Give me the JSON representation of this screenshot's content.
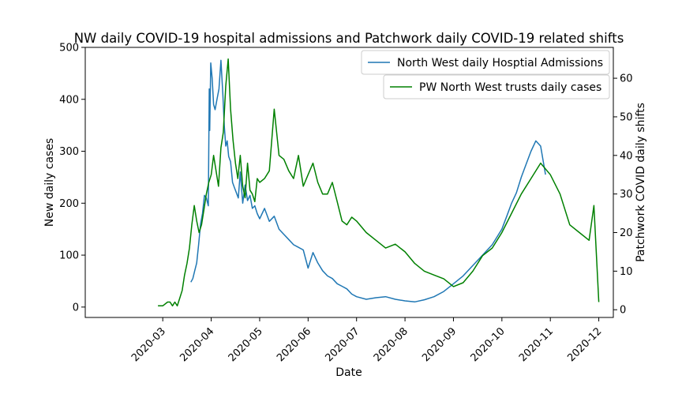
{
  "chart_data": {
    "type": "line",
    "title": "NW daily COVID-19 hospital admissions and Patchwork daily COVID-19 related shifts",
    "xlabel": "Date",
    "ylabel_left": "New daily cases",
    "ylabel_right": "Patchwork COVID daily shifts",
    "x_ticks": [
      "2020-03",
      "2020-04",
      "2020-05",
      "2020-06",
      "2020-07",
      "2020-08",
      "2020-09",
      "2020-10",
      "2020-11",
      "2020-12"
    ],
    "x_range": [
      -1.6,
      9.3
    ],
    "ylim_left": [
      -20,
      500
    ],
    "ylim_right": [
      -2,
      68
    ],
    "yticks_left": [
      0,
      100,
      200,
      300,
      400,
      500
    ],
    "yticks_right": [
      0,
      10,
      20,
      30,
      40,
      50,
      60
    ],
    "legend": {
      "placement": "top-right"
    },
    "colors": {
      "admissions": "#1f77b4",
      "shifts": "#008000"
    },
    "series": [
      {
        "name": "North West daily Hosptial Admissions",
        "axis": "left",
        "x": [
          0.58,
          0.62,
          0.66,
          0.7,
          0.74,
          0.78,
          0.82,
          0.86,
          0.9,
          0.94,
          0.96,
          0.97,
          0.99,
          1.02,
          1.05,
          1.08,
          1.12,
          1.16,
          1.2,
          1.24,
          1.27,
          1.3,
          1.33,
          1.36,
          1.4,
          1.44,
          1.48,
          1.52,
          1.56,
          1.6,
          1.65,
          1.7,
          1.75,
          1.8,
          1.85,
          1.9,
          1.95,
          2.0,
          2.1,
          2.2,
          2.3,
          2.4,
          2.5,
          2.6,
          2.7,
          2.8,
          2.9,
          3.0,
          3.1,
          3.2,
          3.3,
          3.4,
          3.5,
          3.6,
          3.7,
          3.8,
          3.9,
          4.0,
          4.2,
          4.4,
          4.6,
          4.8,
          5.0,
          5.2,
          5.4,
          5.6,
          5.8,
          6.0,
          6.2,
          6.4,
          6.6,
          6.8,
          7.0,
          7.1,
          7.2,
          7.3,
          7.4,
          7.5,
          7.6,
          7.7,
          7.8,
          7.9
        ],
        "values": [
          48,
          55,
          70,
          85,
          120,
          160,
          180,
          215,
          210,
          195,
          420,
          340,
          470,
          440,
          390,
          380,
          400,
          420,
          475,
          410,
          350,
          310,
          320,
          290,
          280,
          240,
          230,
          220,
          210,
          260,
          200,
          235,
          205,
          215,
          190,
          195,
          180,
          170,
          190,
          165,
          175,
          150,
          140,
          130,
          120,
          115,
          110,
          75,
          105,
          85,
          70,
          60,
          55,
          45,
          40,
          35,
          25,
          20,
          15,
          18,
          20,
          15,
          12,
          10,
          14,
          20,
          30,
          45,
          60,
          80,
          100,
          120,
          150,
          175,
          200,
          220,
          250,
          275,
          300,
          320,
          310,
          255
        ]
      },
      {
        "name": "PW North West trusts daily cases",
        "axis": "right",
        "x": [
          -0.1,
          0.0,
          0.1,
          0.15,
          0.2,
          0.25,
          0.3,
          0.35,
          0.4,
          0.45,
          0.5,
          0.55,
          0.6,
          0.65,
          0.7,
          0.75,
          0.8,
          0.85,
          0.9,
          0.95,
          1.0,
          1.05,
          1.1,
          1.15,
          1.2,
          1.25,
          1.3,
          1.35,
          1.4,
          1.45,
          1.5,
          1.55,
          1.6,
          1.65,
          1.7,
          1.75,
          1.8,
          1.85,
          1.9,
          1.95,
          2.0,
          2.1,
          2.2,
          2.3,
          2.4,
          2.5,
          2.6,
          2.7,
          2.8,
          2.9,
          3.0,
          3.1,
          3.2,
          3.3,
          3.4,
          3.5,
          3.6,
          3.7,
          3.8,
          3.9,
          4.0,
          4.2,
          4.4,
          4.6,
          4.8,
          5.0,
          5.2,
          5.4,
          5.6,
          5.8,
          6.0,
          6.2,
          6.4,
          6.6,
          6.8,
          7.0,
          7.2,
          7.4,
          7.6,
          7.8,
          8.0,
          8.2,
          8.4,
          8.6,
          8.8,
          8.9,
          9.0
        ],
        "values": [
          1,
          1,
          2,
          2,
          1,
          2,
          1,
          3,
          5,
          9,
          12,
          16,
          22,
          27,
          23,
          20,
          22,
          26,
          30,
          33,
          35,
          40,
          36,
          32,
          42,
          46,
          58,
          65,
          52,
          44,
          38,
          34,
          40,
          32,
          29,
          38,
          31,
          30,
          28,
          34,
          33,
          34,
          36,
          52,
          40,
          39,
          36,
          34,
          40,
          32,
          35,
          38,
          33,
          30,
          30,
          33,
          28,
          23,
          22,
          24,
          23,
          20,
          18,
          16,
          17,
          15,
          12,
          10,
          9,
          8,
          6,
          7,
          10,
          14,
          16,
          20,
          25,
          30,
          34,
          38,
          35,
          30,
          22,
          20,
          18,
          27,
          2
        ]
      }
    ]
  }
}
